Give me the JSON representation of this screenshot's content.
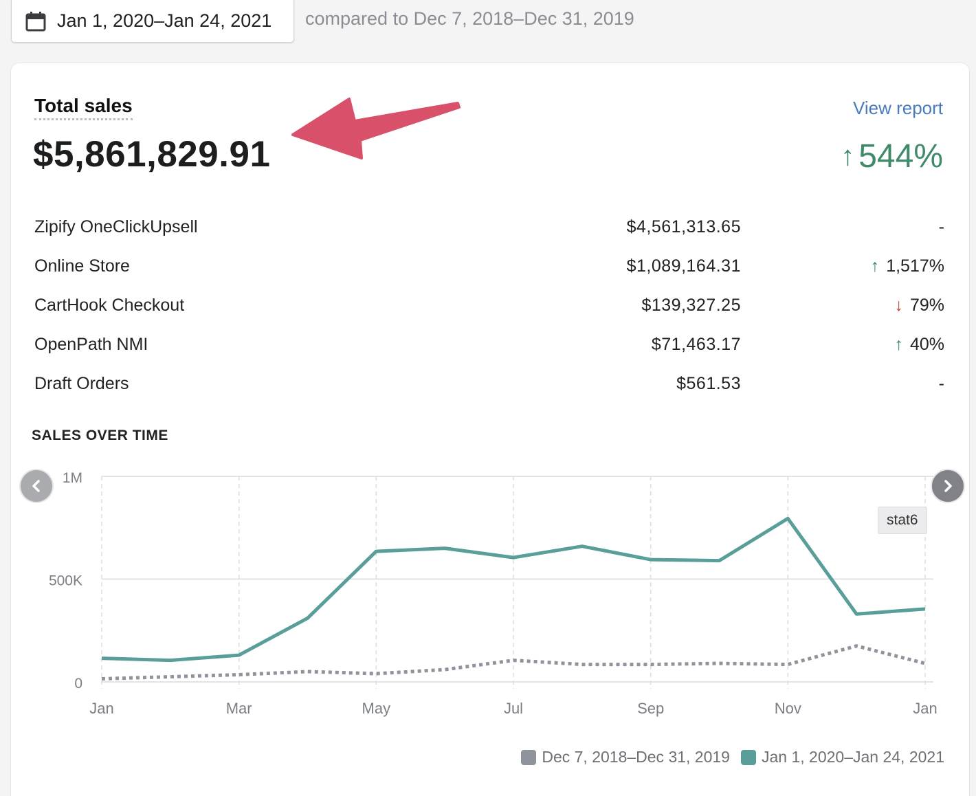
{
  "date_range": {
    "label": "Jan 1, 2020–Jan 24, 2021",
    "icon": "calendar-icon"
  },
  "comparison": "compared to Dec 7, 2018–Dec 31, 2019",
  "summary": {
    "title": "Total sales",
    "value": "$5,861,829.91",
    "view_report": "View report",
    "change_arrow": "↑",
    "change": "544%"
  },
  "rows": [
    {
      "name": "Zipify OneClickUpsell",
      "amount": "$4,561,313.65",
      "arrow": "",
      "change": "-",
      "dir": "none"
    },
    {
      "name": "Online Store",
      "amount": "$1,089,164.31",
      "arrow": "↑",
      "change": "1,517%",
      "dir": "up"
    },
    {
      "name": "CartHook Checkout",
      "amount": "$139,327.25",
      "arrow": "↓",
      "change": "79%",
      "dir": "down"
    },
    {
      "name": "OpenPath NMI",
      "amount": "$71,463.17",
      "arrow": "↑",
      "change": "40%",
      "dir": "up"
    },
    {
      "name": "Draft Orders",
      "amount": "$561.53",
      "arrow": "",
      "change": "-",
      "dir": "none"
    }
  ],
  "section_title": "SALES OVER TIME",
  "tooltip": "stat6",
  "colors": {
    "current": "#5a9e9a",
    "previous": "#8f939b",
    "up": "#3f8a67",
    "down": "#c8472e",
    "annotation": "#d9506b"
  },
  "chart_data": {
    "type": "line",
    "y_ticks": [
      "1M",
      "500K",
      "0"
    ],
    "ylim": [
      0,
      1000000
    ],
    "x_tick_labels": [
      "Jan",
      "Mar",
      "May",
      "Jul",
      "Sep",
      "Nov",
      "Jan"
    ],
    "x": [
      "2020-01",
      "2020-02",
      "2020-03",
      "2020-04",
      "2020-05",
      "2020-06",
      "2020-07",
      "2020-08",
      "2020-09",
      "2020-10",
      "2020-11",
      "2020-12",
      "2021-01"
    ],
    "grid": true,
    "legend_position": "bottom-right",
    "series": [
      {
        "name": "Dec 7, 2018–Dec 31, 2019",
        "style": "dotted",
        "color": "#8f939b",
        "values": [
          15000,
          25000,
          35000,
          50000,
          40000,
          60000,
          105000,
          85000,
          85000,
          90000,
          85000,
          175000,
          90000
        ]
      },
      {
        "name": "Jan 1, 2020–Jan 24, 2021",
        "style": "solid",
        "color": "#5a9e9a",
        "values": [
          115000,
          105000,
          130000,
          310000,
          635000,
          650000,
          605000,
          660000,
          595000,
          590000,
          795000,
          330000,
          355000
        ]
      }
    ]
  }
}
